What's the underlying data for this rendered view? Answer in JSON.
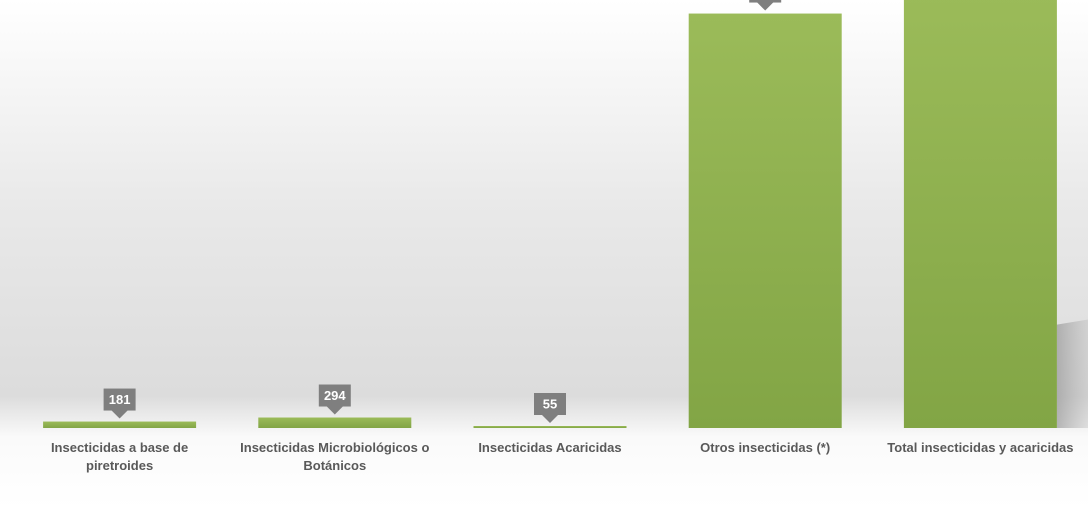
{
  "chart_data": {
    "type": "bar",
    "categories": [
      "Insecticidas a base de piretroides",
      "Insecticidas Microbiológicos o Botánicos",
      "Insecticidas Acaricidas",
      "Otros insecticidas (*)",
      "Total insecticidas y acaricidas"
    ],
    "values": [
      181,
      294,
      55,
      11620,
      12150
    ],
    "color": "#8fb351",
    "ylim": [
      0,
      12000
    ]
  }
}
